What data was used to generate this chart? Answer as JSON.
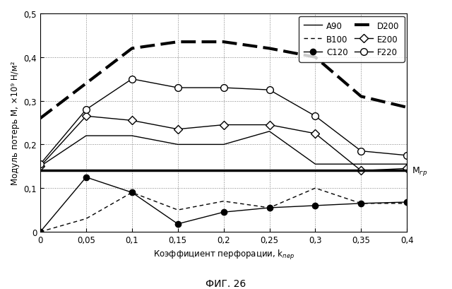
{
  "x": [
    0,
    0.05,
    0.1,
    0.15,
    0.2,
    0.25,
    0.3,
    0.35,
    0.4
  ],
  "A90": [
    0.15,
    0.22,
    0.22,
    0.2,
    0.2,
    0.23,
    0.155,
    0.155,
    0.155
  ],
  "B100": [
    0.0,
    0.03,
    0.09,
    0.05,
    0.07,
    0.055,
    0.1,
    0.065,
    0.065
  ],
  "C120": [
    0.0,
    0.125,
    0.09,
    0.018,
    0.045,
    0.055,
    0.06,
    0.065,
    0.068
  ],
  "D200": [
    0.26,
    0.34,
    0.42,
    0.435,
    0.435,
    0.42,
    0.4,
    0.31,
    0.285
  ],
  "E200": [
    0.15,
    0.265,
    0.255,
    0.235,
    0.245,
    0.245,
    0.225,
    0.14,
    0.145
  ],
  "F220": [
    0.155,
    0.28,
    0.35,
    0.33,
    0.33,
    0.325,
    0.265,
    0.185,
    0.175
  ],
  "M_gr": 0.14,
  "xlim": [
    0,
    0.4
  ],
  "ylim": [
    0,
    0.5
  ],
  "ytick_labels": [
    "0",
    "0,1",
    "0,2",
    "0,3",
    "0,4",
    "0,5"
  ],
  "xtick_labels": [
    "0",
    "0,05",
    "0,1",
    "0,15",
    "0,2",
    "0,25",
    "0,3",
    "0,35",
    "0,4"
  ],
  "yticks": [
    0,
    0.1,
    0.2,
    0.3,
    0.4,
    0.5
  ],
  "xticks": [
    0,
    0.05,
    0.1,
    0.15,
    0.2,
    0.25,
    0.3,
    0.35,
    0.4
  ],
  "ylabel": "Модуль потерь М, ×10⁹ Н/м²",
  "xlabel_base": "Коэффициент перфорации, k",
  "xlabel_sub": "пер",
  "M_gr_label": "Мгр",
  "title": "ФИГ. 26"
}
